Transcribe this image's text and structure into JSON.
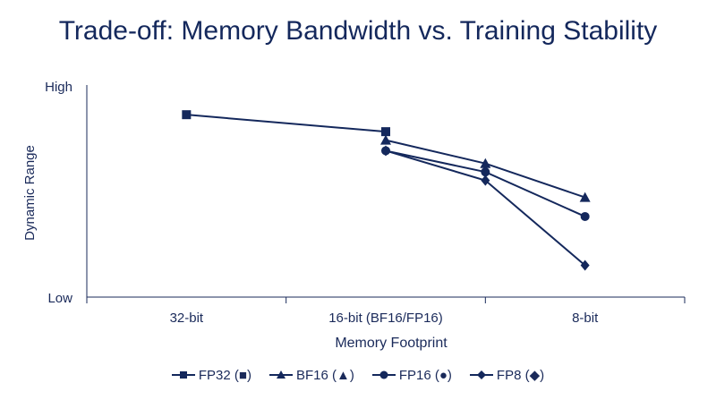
{
  "title": "Trade-off: Memory Bandwidth vs. Training Stability",
  "colors": {
    "series": "#14285c",
    "axis": "#1a2a5a"
  },
  "chart_data": {
    "type": "line",
    "title": "Trade-off: Memory Bandwidth vs. Training Stability",
    "xlabel": "Memory Footprint",
    "ylabel": "Dynamic Range",
    "categories": [
      "32-bit",
      "16-bit (BF16/FP16)",
      "8-bit"
    ],
    "y_tick_labels": {
      "high": "High",
      "low": "Low"
    },
    "ylim": [
      0,
      1
    ],
    "grid": false,
    "legend_position": "bottom",
    "series": [
      {
        "name": "FP32 (■)",
        "marker": "square",
        "points": [
          {
            "x": "32-bit",
            "y": 0.86
          },
          {
            "x": "16-bit (BF16/FP16)",
            "y": 0.78
          }
        ]
      },
      {
        "name": "BF16 (▲)",
        "marker": "triangle",
        "points": [
          {
            "x": "16-bit (BF16/FP16)",
            "y": 0.74
          },
          {
            "x": "8-bit (mid)",
            "y": 0.63
          },
          {
            "x": "8-bit",
            "y": 0.47
          }
        ]
      },
      {
        "name": "FP16 (●)",
        "marker": "circle",
        "points": [
          {
            "x": "16-bit (BF16/FP16)",
            "y": 0.69
          },
          {
            "x": "8-bit (mid)",
            "y": 0.59
          },
          {
            "x": "8-bit",
            "y": 0.38
          }
        ]
      },
      {
        "name": "FP8 (◆)",
        "marker": "diamond",
        "points": [
          {
            "x": "16-bit (BF16/FP16)",
            "y": 0.69
          },
          {
            "x": "8-bit (mid)",
            "y": 0.55
          },
          {
            "x": "8-bit",
            "y": 0.15
          }
        ]
      }
    ]
  }
}
